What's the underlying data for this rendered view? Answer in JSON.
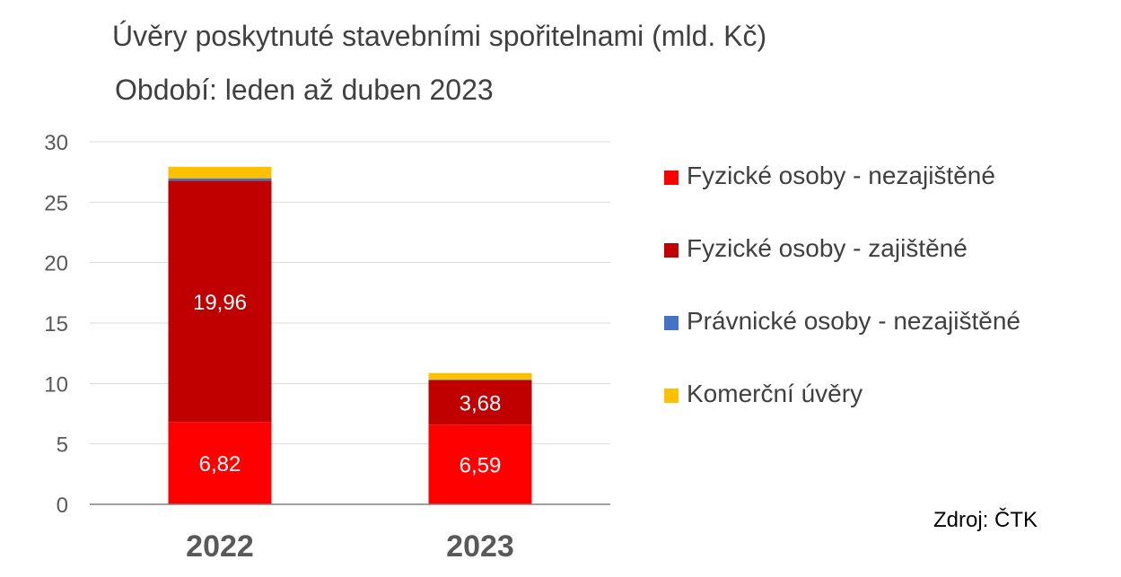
{
  "chart_data": {
    "type": "bar",
    "stacked": true,
    "title": "Úvěry poskytnuté stavebními spořitelnami (mld. Kč)",
    "subtitle": "Období:  leden až duben 2023",
    "categories": [
      "2022",
      "2023"
    ],
    "series": [
      {
        "name": "Fyzické osoby - nezajištěné",
        "color": "#ff0000",
        "values": [
          6.82,
          6.59
        ],
        "labels": [
          "6,82",
          "6,59"
        ]
      },
      {
        "name": "Fyzické osoby - zajištěné",
        "color": "#c00000",
        "values": [
          19.96,
          3.68
        ],
        "labels": [
          "19,96",
          "3,68"
        ]
      },
      {
        "name": "Právnické osoby - nezajištěné",
        "color": "#4472c4",
        "values": [
          0.2,
          0.05
        ],
        "labels": [
          "",
          ""
        ]
      },
      {
        "name": "Komerční úvěry",
        "color": "#ffc000",
        "values": [
          0.95,
          0.55
        ],
        "labels": [
          "",
          ""
        ]
      }
    ],
    "ylim": [
      0,
      30
    ],
    "yticks": [
      0,
      5,
      10,
      15,
      20,
      25,
      30
    ],
    "grid": true,
    "legend_position": "right"
  },
  "source": "Zdroj: ČTK"
}
